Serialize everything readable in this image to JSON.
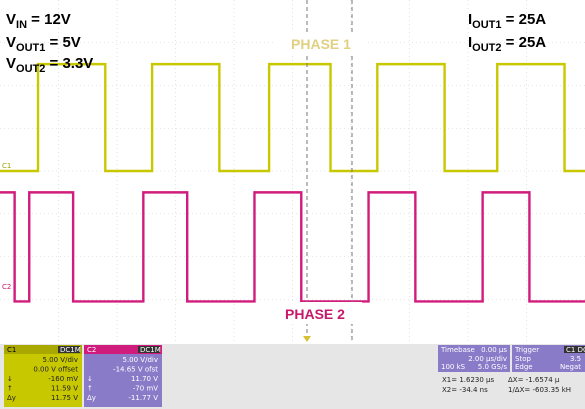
{
  "annotations": {
    "vin_label": "V",
    "vin_sub": "IN",
    "vin_value": " = 12V",
    "vout1_label": "V",
    "vout1_sub": "OUT1",
    "vout1_value": " = 5V",
    "vout2_label": "V",
    "vout2_sub": "OUT2",
    "vout2_value": " = 3.3V",
    "iout1_label": "I",
    "iout1_sub": "OUT1",
    "iout1_value": " = 25A",
    "iout2_label": "I",
    "iout2_sub": "OUT2",
    "iout2_value": " = 25A",
    "phase1": "PHASE 1",
    "phase2": "PHASE 2"
  },
  "markers": {
    "c1": "C1",
    "c2": "C2"
  },
  "colors": {
    "phase1": "#C8C800",
    "phase2": "#D01C7C",
    "phase1_text": "#E0D080",
    "phase2_text": "#C8186C",
    "grid": "#D0D0D0"
  },
  "chart_data": {
    "type": "line",
    "title": "",
    "xlabel": "",
    "ylabel": "",
    "timebase": "2.00 µs/div",
    "xlim": [
      0,
      20
    ],
    "ylim": [
      -8,
      8
    ],
    "grid": true,
    "series": [
      {
        "name": "PHASE 1",
        "channel": "C1",
        "high": 5.0,
        "low": 0.0,
        "edges": [
          [
            0,
            0
          ],
          [
            1.3,
            1
          ],
          [
            3.6,
            0
          ],
          [
            5.2,
            1
          ],
          [
            7.5,
            0
          ],
          [
            9.2,
            1
          ],
          [
            11.3,
            0
          ],
          [
            12.9,
            1
          ],
          [
            15.2,
            0
          ],
          [
            17.0,
            1
          ],
          [
            19.3,
            0
          ]
        ]
      },
      {
        "name": "PHASE 2",
        "channel": "C2",
        "high": -1.0,
        "low": -6.1,
        "edges": [
          [
            0,
            1
          ],
          [
            0.5,
            0
          ],
          [
            1.0,
            1
          ],
          [
            2.5,
            0
          ],
          [
            4.9,
            1
          ],
          [
            6.4,
            0
          ],
          [
            8.7,
            1
          ],
          [
            10.3,
            0
          ],
          [
            12.6,
            1
          ],
          [
            14.2,
            0
          ],
          [
            16.5,
            1
          ],
          [
            18.1,
            0
          ]
        ]
      }
    ]
  },
  "panels": {
    "c1": {
      "title": "C1",
      "badge": "DC1M",
      "rows": [
        [
          "",
          "5.00 V/div"
        ],
        [
          "",
          "0.00 V offset"
        ],
        [
          "↓",
          "-160 mV"
        ],
        [
          "↑",
          "11.59 V"
        ],
        [
          "Δy",
          "11.75 V"
        ]
      ]
    },
    "c2": {
      "title": "C2",
      "badge": "DC1M",
      "rows": [
        [
          "",
          "5.00 V/div"
        ],
        [
          "",
          "-14.65 V ofst"
        ],
        [
          "↓",
          "11.70 V"
        ],
        [
          "↑",
          "-70 mV"
        ],
        [
          "Δy",
          "-11.77 V"
        ]
      ]
    },
    "timebase": {
      "title": "Timebase",
      "t0": "0.00 µs",
      "div": "2.00 µs/div",
      "samples": "100 kS",
      "rate": "5.0 GS/s"
    },
    "trigger": {
      "title": "Trigger",
      "badge": "C1 DC",
      "mode": "Stop",
      "level": "3.5",
      "type": "Edge",
      "slope": "Negat"
    },
    "cursors": {
      "x1": "X1= 1.6230 µs",
      "dx": "ΔX= -1.6574 µ",
      "x2": "X2= -34.4 ns",
      "inv": "1/ΔX= -603.35 kH"
    }
  }
}
